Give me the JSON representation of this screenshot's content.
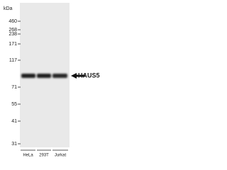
{
  "unit_label": "kDa",
  "markers": [
    "460",
    "268",
    "238",
    "171",
    "117",
    "71",
    "55",
    "41",
    "31"
  ],
  "band_label": "HAUS5",
  "lanes": [
    "HeLa",
    "293T",
    "Jurkat"
  ]
}
